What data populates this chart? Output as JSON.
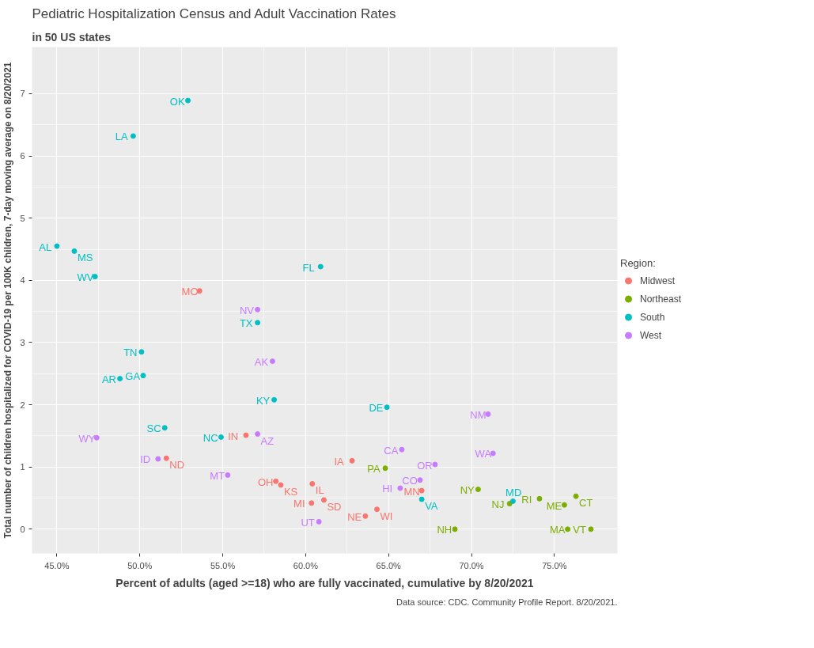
{
  "chart_data": {
    "type": "scatter",
    "title": "Pediatric Hospitalization Census and Adult Vaccination Rates",
    "subtitle": "in 50 US states",
    "xlabel": "Percent of adults (aged >=18) who are fully vaccinated, cumulative by 8/20/2021",
    "ylabel": "Total number of children hospitalized for COVID-19 per 100K children, 7-day moving average on 8/20/2021",
    "legend_title": "Region:",
    "legend": "right",
    "grid": true,
    "marker": "circle",
    "xlim": [
      43.5,
      78.8
    ],
    "ylim": [
      -0.39,
      7.75
    ],
    "xticks": [
      {
        "value": 45,
        "label": "45.0%"
      },
      {
        "value": 50,
        "label": "50.0%"
      },
      {
        "value": 55,
        "label": "55.0%"
      },
      {
        "value": 60,
        "label": "60.0%"
      },
      {
        "value": 65,
        "label": "65.0%"
      },
      {
        "value": 70,
        "label": "70.0%"
      },
      {
        "value": 75,
        "label": "75.0%"
      }
    ],
    "yticks": [
      0,
      1,
      2,
      3,
      4,
      5,
      6,
      7
    ],
    "annotations": [
      "Data source: CDC. Community Profile Report. 8/20/2021.",
      {
        "text": "MO",
        "x": 53.6,
        "y": 3.83
      },
      {
        "text": "IN",
        "x": 56.4,
        "y": 1.51
      },
      {
        "text": "ND",
        "x": 51.6,
        "y": 1.14
      },
      {
        "text": "OH",
        "x": 58.2,
        "y": 0.77
      },
      {
        "text": "KS",
        "x": 58.5,
        "y": 0.71
      },
      {
        "text": "IL",
        "x": 60.4,
        "y": 0.73
      },
      {
        "text": "MI",
        "x": 60.35,
        "y": 0.42
      },
      {
        "text": "SD",
        "x": 61.1,
        "y": 0.47
      },
      {
        "text": "IA",
        "x": 62.8,
        "y": 1.1
      },
      {
        "text": "NE",
        "x": 63.6,
        "y": 0.21
      },
      {
        "text": "WI",
        "x": 64.3,
        "y": 0.32
      },
      {
        "text": "MN",
        "x": 67.0,
        "y": 0.62
      },
      {
        "text": "PA",
        "x": 64.8,
        "y": 0.98
      },
      {
        "text": "NY",
        "x": 70.4,
        "y": 0.64
      },
      {
        "text": "NH",
        "x": 69.0,
        "y": 0.0
      },
      {
        "text": "NJ",
        "x": 72.3,
        "y": 0.41
      },
      {
        "text": "RI",
        "x": 74.1,
        "y": 0.49
      },
      {
        "text": "ME",
        "x": 75.6,
        "y": 0.39
      },
      {
        "text": "CT",
        "x": 76.3,
        "y": 0.53
      },
      {
        "text": "MA",
        "x": 75.8,
        "y": 0.0
      },
      {
        "text": "VT",
        "x": 77.2,
        "y": 0.0
      },
      {
        "text": "OK",
        "x": 52.9,
        "y": 6.89
      },
      {
        "text": "LA",
        "x": 49.6,
        "y": 6.32
      },
      {
        "text": "AL",
        "x": 45.0,
        "y": 4.55
      },
      {
        "text": "MS",
        "x": 46.05,
        "y": 4.47
      },
      {
        "text": "WV",
        "x": 47.3,
        "y": 4.06
      },
      {
        "text": "TX",
        "x": 57.1,
        "y": 3.32
      },
      {
        "text": "FL",
        "x": 60.9,
        "y": 4.22
      },
      {
        "text": "TN",
        "x": 50.1,
        "y": 2.85
      },
      {
        "text": "AR",
        "x": 48.8,
        "y": 2.42
      },
      {
        "text": "GA",
        "x": 50.2,
        "y": 2.47
      },
      {
        "text": "KY",
        "x": 58.1,
        "y": 2.08
      },
      {
        "text": "SC",
        "x": 51.5,
        "y": 1.63
      },
      {
        "text": "NC",
        "x": 54.9,
        "y": 1.48
      },
      {
        "text": "DE",
        "x": 64.9,
        "y": 1.96
      },
      {
        "text": "VA",
        "x": 67.0,
        "y": 0.48
      },
      {
        "text": "MD",
        "x": 72.5,
        "y": 0.45
      },
      {
        "text": "NV",
        "x": 57.1,
        "y": 3.53
      },
      {
        "text": "AK",
        "x": 58.0,
        "y": 2.7
      },
      {
        "text": "WY",
        "x": 47.4,
        "y": 1.47
      },
      {
        "text": "AZ",
        "x": 57.1,
        "y": 1.53
      },
      {
        "text": "ID",
        "x": 51.1,
        "y": 1.13
      },
      {
        "text": "MT",
        "x": 55.3,
        "y": 0.87
      },
      {
        "text": "UT",
        "x": 60.8,
        "y": 0.12
      },
      {
        "text": "CA",
        "x": 65.8,
        "y": 1.28
      },
      {
        "text": "OR",
        "x": 67.8,
        "y": 1.04
      },
      {
        "text": "CO",
        "x": 66.9,
        "y": 0.79
      },
      {
        "text": "HI",
        "x": 65.7,
        "y": 0.66
      },
      {
        "text": "NM",
        "x": 71.0,
        "y": 1.85
      },
      {
        "text": "WA",
        "x": 71.3,
        "y": 1.22
      }
    ],
    "series": [
      {
        "name": "Midwest",
        "color": "#f8766d",
        "x": [
          53.6,
          56.4,
          51.6,
          58.2,
          58.5,
          60.4,
          60.35,
          61.1,
          62.8,
          63.6,
          64.3,
          67.0
        ],
        "values": [
          3.83,
          1.51,
          1.14,
          0.77,
          0.71,
          0.73,
          0.42,
          0.47,
          1.1,
          0.21,
          0.32,
          0.62
        ]
      },
      {
        "name": "Northeast",
        "color": "#7cae00",
        "x": [
          64.8,
          70.4,
          69.0,
          72.3,
          74.1,
          75.6,
          76.3,
          75.8,
          77.2
        ],
        "values": [
          0.98,
          0.64,
          0.0,
          0.41,
          0.49,
          0.39,
          0.53,
          0.0,
          0.0
        ]
      },
      {
        "name": "South",
        "color": "#00bfc4",
        "x": [
          52.9,
          49.6,
          45.0,
          46.05,
          47.3,
          57.1,
          60.9,
          50.1,
          48.8,
          50.2,
          58.1,
          51.5,
          54.9,
          64.9,
          67.0,
          72.5
        ],
        "values": [
          6.89,
          6.32,
          4.55,
          4.47,
          4.06,
          3.32,
          4.22,
          2.85,
          2.42,
          2.47,
          2.08,
          1.63,
          1.48,
          1.96,
          0.48,
          0.45
        ]
      },
      {
        "name": "West",
        "color": "#c77cff",
        "x": [
          57.1,
          58.0,
          47.4,
          57.1,
          51.1,
          55.3,
          60.8,
          65.8,
          67.8,
          66.9,
          65.7,
          71.0,
          71.3
        ],
        "values": [
          3.53,
          2.7,
          1.47,
          1.53,
          1.13,
          0.87,
          0.12,
          1.28,
          1.04,
          0.79,
          0.66,
          1.85,
          1.22
        ]
      }
    ]
  }
}
